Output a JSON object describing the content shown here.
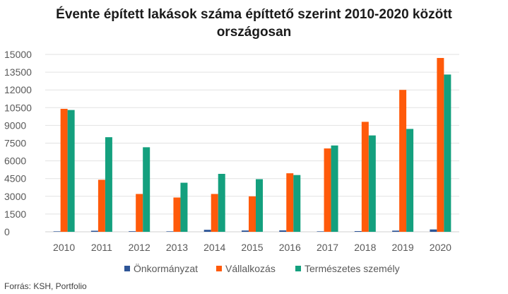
{
  "chart_data": {
    "type": "bar",
    "title_line1": "Évente épített lakások száma építtető szerint 2010-2020 között",
    "title_line2": "országosan",
    "categories": [
      "2010",
      "2011",
      "2012",
      "2013",
      "2014",
      "2015",
      "2016",
      "2017",
      "2018",
      "2019",
      "2020"
    ],
    "series": [
      {
        "name": "Önkormányzat",
        "color": "#2E5597",
        "values": [
          40,
          90,
          50,
          40,
          170,
          110,
          120,
          40,
          60,
          100,
          200
        ]
      },
      {
        "name": "Vállalkozás",
        "color": "#FF5A0A",
        "values": [
          10400,
          4400,
          3200,
          2900,
          3200,
          3000,
          4950,
          7050,
          9300,
          12000,
          14700
        ]
      },
      {
        "name": "Természetes személy",
        "color": "#14A07E",
        "values": [
          10300,
          8000,
          7150,
          4150,
          4900,
          4450,
          4800,
          7300,
          8150,
          8700,
          13300
        ]
      }
    ],
    "yticks": [
      0,
      1500,
      3000,
      4500,
      6000,
      7500,
      9000,
      10500,
      12000,
      13500,
      15000
    ],
    "ylim": [
      0,
      15000
    ],
    "grid": true,
    "legend_position": "bottom"
  },
  "source_text": "Forrás: KSH, Portfolio"
}
